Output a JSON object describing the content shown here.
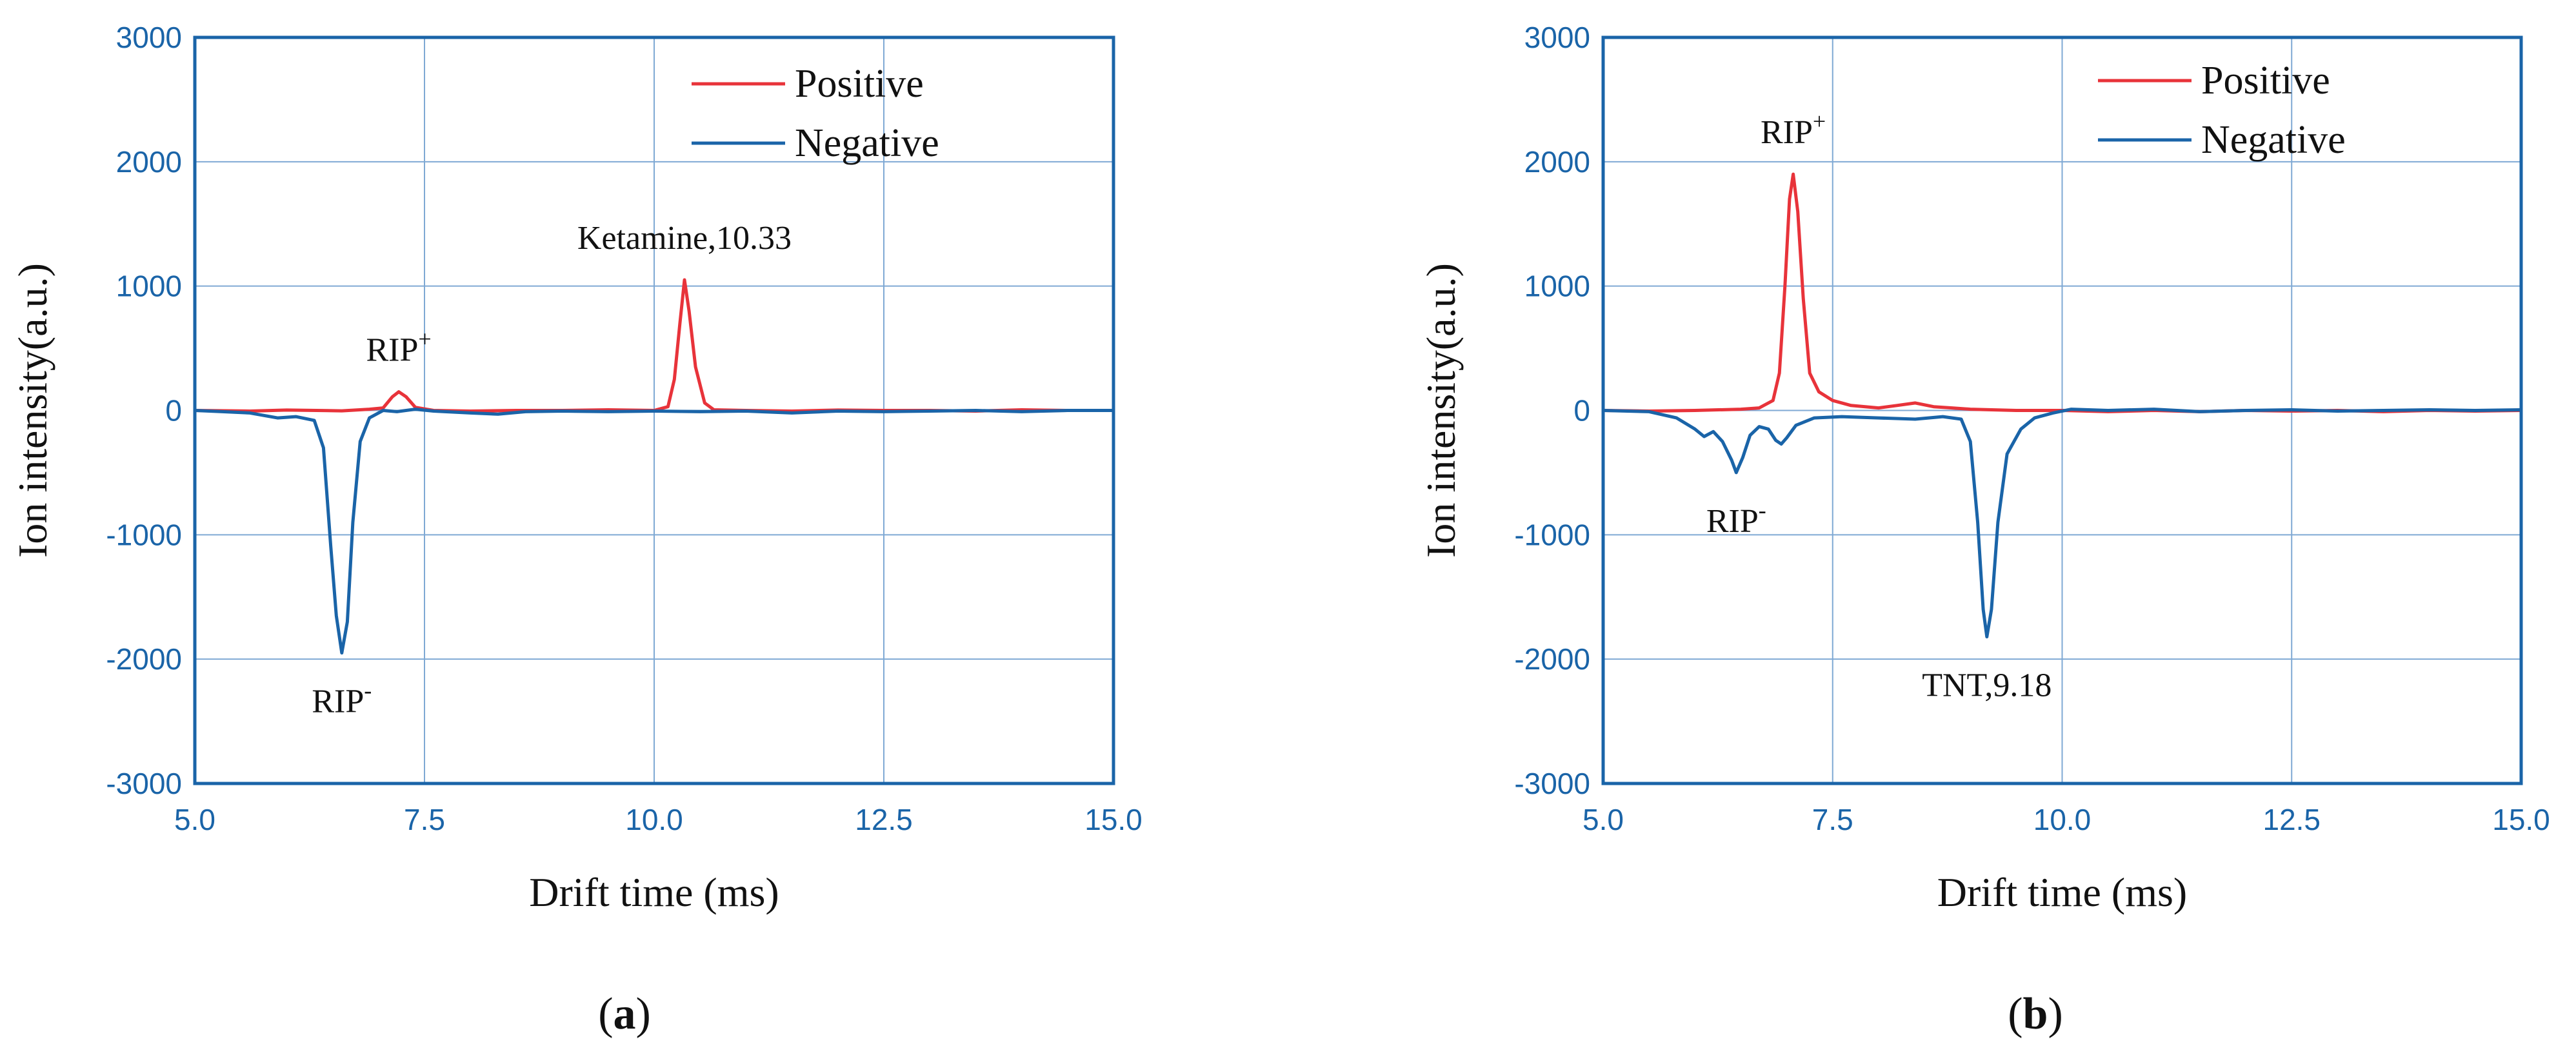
{
  "colors": {
    "positive": "#e8333a",
    "negative": "#1a64a8",
    "axis": "#1a64a8",
    "grid": "#7fa9d4",
    "tick_label": "#1a64a8"
  },
  "chart_data": [
    {
      "type": "line",
      "panel_label": "a",
      "xlabel": "Drift time (ms)",
      "ylabel": "Ion intensity(a.u.)",
      "xlim": [
        5.0,
        15.0
      ],
      "ylim": [
        -3000,
        3000
      ],
      "x_ticks": [
        "5.0",
        "7.5",
        "10.0",
        "12.5",
        "15.0"
      ],
      "y_ticks": [
        "3000",
        "2000",
        "1000",
        "0",
        "-1000",
        "-2000",
        "-3000"
      ],
      "grid": true,
      "legend_position": "top-right",
      "series": [
        {
          "name": "Positive",
          "color": "#e8333a",
          "points": [
            [
              5.0,
              0
            ],
            [
              5.6,
              -5
            ],
            [
              6.0,
              3
            ],
            [
              6.6,
              -3
            ],
            [
              6.9,
              10
            ],
            [
              7.05,
              20
            ],
            [
              7.15,
              110
            ],
            [
              7.22,
              150
            ],
            [
              7.3,
              110
            ],
            [
              7.4,
              25
            ],
            [
              7.6,
              0
            ],
            [
              8.0,
              -5
            ],
            [
              8.5,
              0
            ],
            [
              9.0,
              0
            ],
            [
              9.5,
              5
            ],
            [
              10.0,
              0
            ],
            [
              10.15,
              30
            ],
            [
              10.22,
              250
            ],
            [
              10.28,
              700
            ],
            [
              10.33,
              1050
            ],
            [
              10.38,
              800
            ],
            [
              10.45,
              350
            ],
            [
              10.55,
              60
            ],
            [
              10.65,
              5
            ],
            [
              11.0,
              0
            ],
            [
              11.5,
              -5
            ],
            [
              12.0,
              3
            ],
            [
              12.5,
              0
            ],
            [
              13.0,
              0
            ],
            [
              13.5,
              -5
            ],
            [
              14.0,
              5
            ],
            [
              14.5,
              0
            ],
            [
              15.0,
              0
            ]
          ]
        },
        {
          "name": "Negative",
          "color": "#1a64a8",
          "points": [
            [
              5.0,
              0
            ],
            [
              5.3,
              -10
            ],
            [
              5.6,
              -20
            ],
            [
              5.9,
              -60
            ],
            [
              6.1,
              -50
            ],
            [
              6.3,
              -80
            ],
            [
              6.4,
              -300
            ],
            [
              6.48,
              -1100
            ],
            [
              6.54,
              -1650
            ],
            [
              6.6,
              -1950
            ],
            [
              6.66,
              -1700
            ],
            [
              6.72,
              -900
            ],
            [
              6.8,
              -250
            ],
            [
              6.9,
              -60
            ],
            [
              7.05,
              0
            ],
            [
              7.2,
              -10
            ],
            [
              7.4,
              10
            ],
            [
              7.6,
              -5
            ],
            [
              8.0,
              -20
            ],
            [
              8.3,
              -30
            ],
            [
              8.6,
              -10
            ],
            [
              9.0,
              -5
            ],
            [
              9.5,
              -10
            ],
            [
              10.0,
              -5
            ],
            [
              10.5,
              -10
            ],
            [
              11.0,
              -5
            ],
            [
              11.5,
              -20
            ],
            [
              12.0,
              -5
            ],
            [
              12.5,
              -10
            ],
            [
              13.0,
              -5
            ],
            [
              13.5,
              0
            ],
            [
              14.0,
              -10
            ],
            [
              14.5,
              0
            ],
            [
              15.0,
              0
            ]
          ]
        }
      ],
      "annotations": [
        {
          "text": "RIP",
          "sup": "+",
          "x": 7.22,
          "y": 150,
          "anchor": "above"
        },
        {
          "text": "RIP",
          "sup": "-",
          "x": 6.6,
          "y": -1950,
          "anchor": "below"
        },
        {
          "text": "Ketamine,10.33",
          "x": 10.33,
          "y": 1050,
          "anchor": "above"
        }
      ]
    },
    {
      "type": "line",
      "panel_label": "b",
      "xlabel": "Drift time (ms)",
      "ylabel": "Ion intensity(a.u.)",
      "xlim": [
        5.0,
        15.0
      ],
      "ylim": [
        -3000,
        3000
      ],
      "x_ticks": [
        "5.0",
        "7.5",
        "10.0",
        "12.5",
        "15.0"
      ],
      "y_ticks": [
        "3000",
        "2000",
        "1000",
        "0",
        "-1000",
        "-2000",
        "-3000"
      ],
      "grid": true,
      "legend_position": "top-right",
      "series": [
        {
          "name": "Positive",
          "color": "#e8333a",
          "points": [
            [
              5.0,
              0
            ],
            [
              5.5,
              -5
            ],
            [
              6.0,
              0
            ],
            [
              6.5,
              10
            ],
            [
              6.7,
              20
            ],
            [
              6.85,
              80
            ],
            [
              6.92,
              300
            ],
            [
              6.98,
              1000
            ],
            [
              7.03,
              1700
            ],
            [
              7.07,
              1900
            ],
            [
              7.12,
              1600
            ],
            [
              7.18,
              900
            ],
            [
              7.25,
              300
            ],
            [
              7.35,
              150
            ],
            [
              7.5,
              80
            ],
            [
              7.7,
              40
            ],
            [
              8.0,
              20
            ],
            [
              8.2,
              40
            ],
            [
              8.4,
              60
            ],
            [
              8.6,
              30
            ],
            [
              8.8,
              20
            ],
            [
              9.0,
              10
            ],
            [
              9.5,
              0
            ],
            [
              10.0,
              0
            ],
            [
              10.5,
              -10
            ],
            [
              11.0,
              0
            ],
            [
              11.5,
              -10
            ],
            [
              12.0,
              0
            ],
            [
              12.5,
              -5
            ],
            [
              13.0,
              0
            ],
            [
              13.5,
              -10
            ],
            [
              14.0,
              0
            ],
            [
              14.5,
              -5
            ],
            [
              15.0,
              0
            ]
          ]
        },
        {
          "name": "Negative",
          "color": "#1a64a8",
          "points": [
            [
              5.0,
              0
            ],
            [
              5.5,
              -10
            ],
            [
              5.8,
              -60
            ],
            [
              6.0,
              -150
            ],
            [
              6.1,
              -210
            ],
            [
              6.2,
              -170
            ],
            [
              6.3,
              -250
            ],
            [
              6.4,
              -400
            ],
            [
              6.45,
              -500
            ],
            [
              6.52,
              -380
            ],
            [
              6.6,
              -200
            ],
            [
              6.7,
              -130
            ],
            [
              6.8,
              -150
            ],
            [
              6.88,
              -240
            ],
            [
              6.94,
              -270
            ],
            [
              7.0,
              -220
            ],
            [
              7.1,
              -120
            ],
            [
              7.3,
              -60
            ],
            [
              7.6,
              -50
            ],
            [
              8.0,
              -60
            ],
            [
              8.4,
              -70
            ],
            [
              8.7,
              -50
            ],
            [
              8.9,
              -70
            ],
            [
              9.0,
              -250
            ],
            [
              9.08,
              -900
            ],
            [
              9.14,
              -1600
            ],
            [
              9.18,
              -1820
            ],
            [
              9.23,
              -1600
            ],
            [
              9.3,
              -900
            ],
            [
              9.4,
              -350
            ],
            [
              9.55,
              -150
            ],
            [
              9.7,
              -60
            ],
            [
              9.9,
              -20
            ],
            [
              10.1,
              10
            ],
            [
              10.5,
              0
            ],
            [
              11.0,
              10
            ],
            [
              11.5,
              -10
            ],
            [
              12.0,
              0
            ],
            [
              12.5,
              5
            ],
            [
              13.0,
              -5
            ],
            [
              13.5,
              0
            ],
            [
              14.0,
              5
            ],
            [
              14.5,
              0
            ],
            [
              15.0,
              5
            ]
          ]
        }
      ],
      "annotations": [
        {
          "text": "RIP",
          "sup": "+",
          "x": 7.07,
          "y": 1900,
          "anchor": "above"
        },
        {
          "text": "RIP",
          "sup": "-",
          "x": 6.45,
          "y": -500,
          "anchor": "below"
        },
        {
          "text": "TNT,9.18",
          "x": 9.18,
          "y": -1820,
          "anchor": "below"
        }
      ]
    }
  ]
}
